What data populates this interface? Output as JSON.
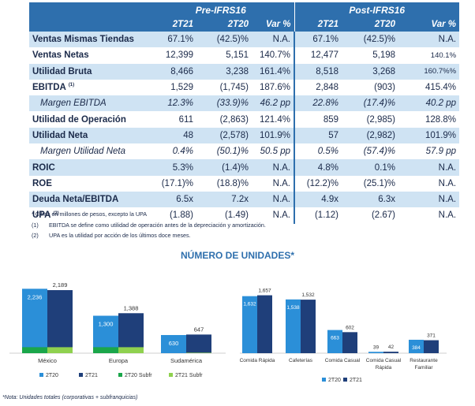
{
  "table": {
    "group_pre": "Pre-IFRS16",
    "group_post": "Post-IFRS16",
    "cols": [
      "2T21",
      "2T20",
      "Var %",
      "2T21",
      "2T20",
      "Var %"
    ],
    "rows": [
      {
        "label": "Ventas Mismas Tiendas",
        "sup": "",
        "italic": false,
        "vals": [
          "67.1%",
          "(42.5)%",
          "N.A.",
          "67.1%",
          "(42.5)%",
          "N.A."
        ]
      },
      {
        "label": "Ventas Netas",
        "sup": "",
        "italic": false,
        "vals": [
          "12,399",
          "5,151",
          "140.7%",
          "12,477",
          "5,198",
          "140.1%"
        ],
        "small": [
          false,
          false,
          false,
          false,
          false,
          true
        ]
      },
      {
        "label": "Utilidad Bruta",
        "sup": "",
        "italic": false,
        "vals": [
          "8,466",
          "3,238",
          "161.4%",
          "8,518",
          "3,268",
          "160.7%%"
        ],
        "small": [
          false,
          false,
          false,
          false,
          false,
          true
        ]
      },
      {
        "label": "EBITDA",
        "sup": "(1)",
        "italic": false,
        "vals": [
          "1,529",
          "(1,745)",
          "187.6%",
          "2,848",
          "(903)",
          "415.4%"
        ]
      },
      {
        "label": "Margen EBITDA",
        "sup": "",
        "italic": true,
        "vals": [
          "12.3%",
          "(33.9)%",
          "46.2 pp",
          "22.8%",
          "(17.4)%",
          "40.2 pp"
        ]
      },
      {
        "label": "Utilidad de Operación",
        "sup": "",
        "italic": false,
        "vals": [
          "611",
          "(2,863)",
          "121.4%",
          "859",
          "(2,985)",
          "128.8%"
        ]
      },
      {
        "label": "Utilidad Neta",
        "sup": "",
        "italic": false,
        "vals": [
          "48",
          "(2,578)",
          "101.9%",
          "57",
          "(2,982)",
          "101.9%"
        ]
      },
      {
        "label": "Margen Utilidad Neta",
        "sup": "",
        "italic": true,
        "vals": [
          "0.4%",
          "(50.1)%",
          "50.5 pp",
          "0.5%",
          "(57.4)%",
          "57.9 pp"
        ]
      },
      {
        "label": "ROIC",
        "sup": "",
        "italic": false,
        "vals": [
          "5.3%",
          "(1.4)%",
          "N.A.",
          "4.8%",
          "0.1%",
          "N.A."
        ]
      },
      {
        "label": "ROE",
        "sup": "",
        "italic": false,
        "vals": [
          "(17.1)%",
          "(18.8)%",
          "N.A.",
          "(12.2)%",
          "(25.1)%",
          "N.A."
        ]
      },
      {
        "label": "Deuda Neta/EBITDA",
        "sup": "",
        "italic": false,
        "vals": [
          "6.5x",
          "7.2x",
          "N.A.",
          "4.9x",
          "6.3x",
          "N.A."
        ]
      },
      {
        "label": "UPA",
        "sup": "(2)",
        "italic": false,
        "vals": [
          "(1.88)",
          "(1.49)",
          "N.A.",
          "(1.12)",
          "(2.67)",
          "N.A."
        ]
      }
    ]
  },
  "notes": {
    "n0": "* Cifras en millones de pesos, excepto la UPA",
    "n1_key": "(1)",
    "n1": "EBITDA se define como utilidad de operación antes de la depreciación y amortización.",
    "n2_key": "(2)",
    "n2": "UPA es la utilidad por acción de los últimos doce meses."
  },
  "units_title": "NÚMERO DE UNIDADES*",
  "footnote": "*Nota: Unidades totales (corporativas + subfranquicias)",
  "colors": {
    "header_bg": "#2e6fad",
    "row_band": "#cfe3f3",
    "series_2T20": "#2b8fd8",
    "series_2T21": "#1f3f7a",
    "series_2T20_subfr": "#1aa64a",
    "series_2T21_subfr": "#8fd14f"
  },
  "chart_data": [
    {
      "type": "bar",
      "categories": [
        "México",
        "Europa",
        "Sudamérica"
      ],
      "series": [
        {
          "name": "2T20",
          "values": [
            2236,
            1300,
            630
          ]
        },
        {
          "name": "2T21",
          "values": [
            2189,
            1388,
            647
          ]
        },
        {
          "name": "2T20 Subfr",
          "values": [
            208,
            208,
            0
          ]
        },
        {
          "name": "2T21 Subfr",
          "values": [
            208,
            208,
            16
          ]
        }
      ],
      "data_labels": [
        [
          "2,236",
          "1,300",
          "630"
        ],
        [
          "2,189",
          "1,388",
          "647"
        ]
      ],
      "ylim": [
        0,
        2600
      ],
      "legend": "bottom",
      "grid": false
    },
    {
      "type": "bar",
      "categories": [
        "Comida Rápida",
        "Cafeterías",
        "Comida Casual",
        "Comida Casual Rápida",
        "Restaurante Familiar"
      ],
      "cat_lines": [
        [
          "Comida Rápida"
        ],
        [
          "Cafeterías"
        ],
        [
          "Comida Casual"
        ],
        [
          "Comida Casual",
          "Rápida"
        ],
        [
          "Restaurante",
          "Familiar"
        ]
      ],
      "series": [
        {
          "name": "2T20",
          "values": [
            1632,
            1538,
            663,
            39,
            384
          ]
        },
        {
          "name": "2T21",
          "values": [
            1657,
            1532,
            602,
            42,
            371
          ]
        }
      ],
      "data_labels": [
        [
          "1,632",
          "1,538",
          "663",
          "39",
          "384"
        ],
        [
          "1,657",
          "1,532",
          "602",
          "42",
          "371"
        ]
      ],
      "ylim": [
        0,
        1850
      ],
      "legend": "bottom",
      "grid": false
    }
  ]
}
